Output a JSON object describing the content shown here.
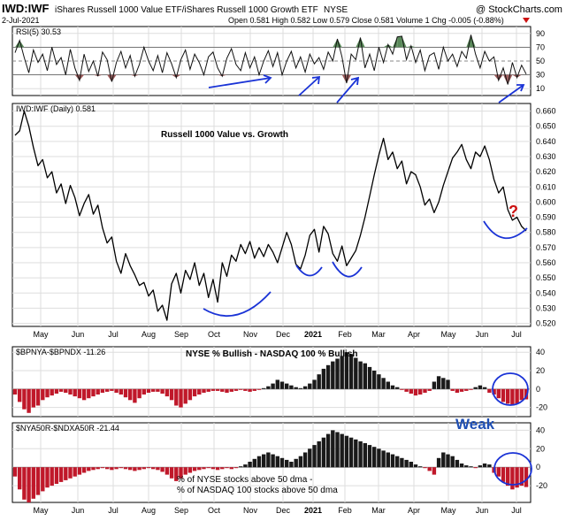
{
  "header": {
    "symbol": "IWD:IWF",
    "description": "iShares Russell 1000 Value ETF/iShares Russell 1000 Growth ETF",
    "exchange": "NYSE",
    "date": "2-Jul-2021",
    "quote": "Open 0.581  High 0.582  Low 0.579  Close 0.581  Volume 1  Chg -0.005 (-0.88%)",
    "watermark": "@ StockCharts.com"
  },
  "x_axis_labels": [
    "May",
    "Jun",
    "Jul",
    "Aug",
    "Sep",
    "Oct",
    "Nov",
    "Dec",
    "2021",
    "Feb",
    "Mar",
    "Apr",
    "May",
    "Jun",
    "Jul"
  ],
  "chart_data": [
    {
      "type": "line",
      "panel": "rsi",
      "legend": "RSI(5) 30.53",
      "y_ticks": [
        "90",
        "70",
        "50",
        "30",
        "10"
      ],
      "ylim": [
        0,
        100
      ],
      "overbought": 70,
      "oversold": 30,
      "series": [
        {
          "name": "RSI(5)",
          "values": [
            62,
            80,
            55,
            33,
            66,
            48,
            60,
            36,
            70,
            45,
            55,
            30,
            67,
            40,
            22,
            60,
            35,
            50,
            28,
            63,
            52,
            20,
            48,
            64,
            40,
            58,
            28,
            45,
            70,
            50,
            36,
            58,
            33,
            62,
            46,
            26,
            52,
            66,
            38,
            60,
            48,
            30,
            56,
            63,
            40,
            28,
            54,
            68,
            45,
            36,
            62,
            40,
            56,
            30,
            50,
            65,
            42,
            62,
            30,
            50,
            64,
            40,
            56,
            34,
            60,
            46,
            55,
            38,
            63,
            50,
            82,
            56,
            18,
            60,
            52,
            84,
            40,
            60,
            36,
            70,
            48,
            74,
            60,
            85,
            86,
            52,
            72,
            48,
            66,
            36,
            58,
            62,
            38,
            70,
            50,
            60,
            42,
            64,
            54,
            88,
            60,
            40,
            64,
            50,
            56,
            22,
            40,
            16,
            48,
            26,
            44,
            31
          ]
        }
      ]
    },
    {
      "type": "line",
      "panel": "ratio",
      "legend": "IWD:IWF (Daily) 0.581",
      "title": "Russell 1000 Value vs. Growth",
      "y_ticks": [
        "0.660",
        "0.650",
        "0.640",
        "0.630",
        "0.620",
        "0.610",
        "0.600",
        "0.590",
        "0.580",
        "0.570",
        "0.560",
        "0.550",
        "0.540",
        "0.530",
        "0.520"
      ],
      "ylim": [
        0.518,
        0.665
      ],
      "annotation": "?",
      "series": [
        {
          "name": "IWD:IWF",
          "values": [
            0.644,
            0.647,
            0.66,
            0.65,
            0.636,
            0.624,
            0.628,
            0.616,
            0.62,
            0.606,
            0.612,
            0.599,
            0.611,
            0.603,
            0.591,
            0.599,
            0.605,
            0.592,
            0.598,
            0.583,
            0.573,
            0.577,
            0.561,
            0.553,
            0.566,
            0.558,
            0.552,
            0.545,
            0.547,
            0.538,
            0.542,
            0.528,
            0.532,
            0.522,
            0.546,
            0.553,
            0.54,
            0.555,
            0.549,
            0.56,
            0.545,
            0.553,
            0.537,
            0.549,
            0.534,
            0.56,
            0.551,
            0.565,
            0.561,
            0.572,
            0.566,
            0.574,
            0.563,
            0.57,
            0.564,
            0.572,
            0.567,
            0.56,
            0.57,
            0.58,
            0.572,
            0.559,
            0.556,
            0.565,
            0.578,
            0.582,
            0.567,
            0.584,
            0.579,
            0.566,
            0.561,
            0.571,
            0.558,
            0.563,
            0.568,
            0.578,
            0.59,
            0.604,
            0.618,
            0.631,
            0.642,
            0.628,
            0.633,
            0.622,
            0.627,
            0.612,
            0.62,
            0.618,
            0.61,
            0.598,
            0.602,
            0.593,
            0.6,
            0.611,
            0.62,
            0.629,
            0.633,
            0.638,
            0.628,
            0.622,
            0.633,
            0.63,
            0.637,
            0.628,
            0.615,
            0.606,
            0.61,
            0.595,
            0.588,
            0.59,
            0.584,
            0.581
          ]
        }
      ]
    },
    {
      "type": "bar",
      "panel": "breadth-bullish",
      "legend": "$BPNYA-$BPNDX -11.26",
      "title": "NYSE % Bullish - NASDAQ 100 % Bullish",
      "y_ticks": [
        "40",
        "20",
        "0",
        "-20"
      ],
      "ylim": [
        -30,
        46
      ],
      "series": [
        {
          "name": "$BPNYA-$BPNDX",
          "values": [
            -6,
            -14,
            -22,
            -26,
            -20,
            -18,
            -12,
            -9,
            -7,
            -5,
            -3,
            -4,
            -6,
            -8,
            -10,
            -12,
            -10,
            -8,
            -6,
            -4,
            -3,
            -2,
            -4,
            -6,
            -9,
            -12,
            -15,
            -10,
            -6,
            -4,
            -3,
            -3,
            -5,
            -8,
            -12,
            -18,
            -20,
            -16,
            -12,
            -8,
            -6,
            -4,
            -3,
            -2,
            -2,
            -3,
            -4,
            -3,
            -2,
            -1,
            -2,
            -3,
            -2,
            -1,
            1,
            3,
            6,
            10,
            8,
            6,
            4,
            2,
            1,
            3,
            6,
            10,
            16,
            22,
            26,
            30,
            33,
            36,
            40,
            38,
            34,
            30,
            28,
            24,
            20,
            16,
            12,
            8,
            4,
            2,
            -1,
            -3,
            -5,
            -7,
            -6,
            -4,
            -2,
            8,
            14,
            12,
            10,
            -2,
            -4,
            -3,
            -2,
            -1,
            2,
            4,
            2,
            -4,
            -6,
            -10,
            -14,
            -16,
            -18,
            -16,
            -12,
            -11.26
          ]
        }
      ]
    },
    {
      "type": "bar",
      "panel": "breadth-50dma",
      "legend": "$NYA50R-$NDXA50R -21.44",
      "title": "Weak",
      "y_ticks": [
        "40",
        "20",
        "0",
        "-20"
      ],
      "ylim": [
        -38,
        48
      ],
      "note": [
        "% of NYSE stocks above 50 dma -",
        "% of NASDAQ 100 stocks above 50 dma"
      ],
      "series": [
        {
          "name": "$NYA50R-$NDXA50R",
          "values": [
            -10,
            -24,
            -35,
            -38,
            -34,
            -30,
            -26,
            -22,
            -20,
            -18,
            -16,
            -14,
            -12,
            -10,
            -8,
            -6,
            -4,
            -3,
            -2,
            -1,
            -2,
            -3,
            -2,
            -1,
            -2,
            -3,
            -4,
            -3,
            -2,
            -1,
            -2,
            -3,
            -5,
            -8,
            -12,
            -15,
            -12,
            -8,
            -6,
            -4,
            -3,
            -2,
            -1,
            -2,
            -3,
            -2,
            -1,
            -2,
            -1,
            1,
            3,
            6,
            9,
            12,
            14,
            16,
            14,
            12,
            10,
            8,
            6,
            9,
            12,
            16,
            20,
            24,
            28,
            32,
            36,
            40,
            38,
            36,
            34,
            32,
            30,
            28,
            26,
            24,
            22,
            20,
            18,
            16,
            14,
            12,
            10,
            8,
            6,
            3,
            1,
            -1,
            -4,
            -8,
            10,
            16,
            14,
            12,
            8,
            4,
            2,
            1,
            -1,
            2,
            4,
            3,
            -6,
            -10,
            -16,
            -20,
            -24,
            -22,
            -20,
            -21.44
          ]
        }
      ]
    }
  ]
}
